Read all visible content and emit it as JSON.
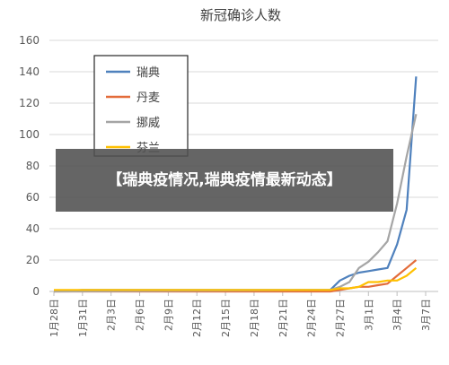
{
  "overlay": {
    "text": "【瑞典疫情况,瑞典疫情最新动态】"
  },
  "chart_data": {
    "type": "line",
    "title": "新冠确诊人数",
    "categories": [
      "1月28日",
      "1月31日",
      "2月3日",
      "2月6日",
      "2月9日",
      "2月12日",
      "2月15日",
      "2月18日",
      "2月21日",
      "2月24日",
      "2月27日",
      "3月1日",
      "3月4日",
      "3月7日"
    ],
    "ylim": [
      0,
      160
    ],
    "yticks": [
      0,
      20,
      40,
      60,
      80,
      100,
      120,
      140,
      160
    ],
    "grid": true,
    "legend_position": "top-left",
    "series": [
      {
        "name": "瑞典",
        "color": "#4f81bd",
        "x": [
          "1月28日",
          "1月31日",
          "2月6日",
          "2月12日",
          "2月18日",
          "2月24日",
          "2月26日",
          "2月27日",
          "2月28日",
          "2月29日",
          "3月1日",
          "3月2日",
          "3月3日",
          "3月4日",
          "3月5日",
          "3月6日"
        ],
        "values": [
          0,
          1,
          1,
          1,
          1,
          1,
          1,
          7,
          10,
          12,
          13,
          14,
          15,
          30,
          52,
          137
        ]
      },
      {
        "name": "丹麦",
        "color": "#e36c3a",
        "x": [
          "1月28日",
          "2月26日",
          "2月27日",
          "2月28日",
          "2月29日",
          "3月1日",
          "3月2日",
          "3月3日",
          "3月4日",
          "3月5日",
          "3月6日"
        ],
        "values": [
          0,
          0,
          1,
          2,
          3,
          3,
          4,
          5,
          10,
          15,
          20
        ]
      },
      {
        "name": "挪威",
        "color": "#a5a5a5",
        "x": [
          "1月28日",
          "2月26日",
          "2月27日",
          "2月28日",
          "2月29日",
          "3月1日",
          "3月2日",
          "3月3日",
          "3月4日",
          "3月5日",
          "3月6日"
        ],
        "values": [
          0,
          1,
          3,
          6,
          15,
          19,
          25,
          32,
          56,
          86,
          113
        ]
      },
      {
        "name": "芬兰",
        "color": "#ffc000",
        "x": [
          "1月28日",
          "2月26日",
          "2月27日",
          "2月28日",
          "2月29日",
          "3月1日",
          "3月2日",
          "3月3日",
          "3月4日",
          "3月5日",
          "3月6日"
        ],
        "values": [
          1,
          1,
          2,
          2,
          3,
          6,
          6,
          7,
          7,
          10,
          15
        ]
      }
    ]
  }
}
